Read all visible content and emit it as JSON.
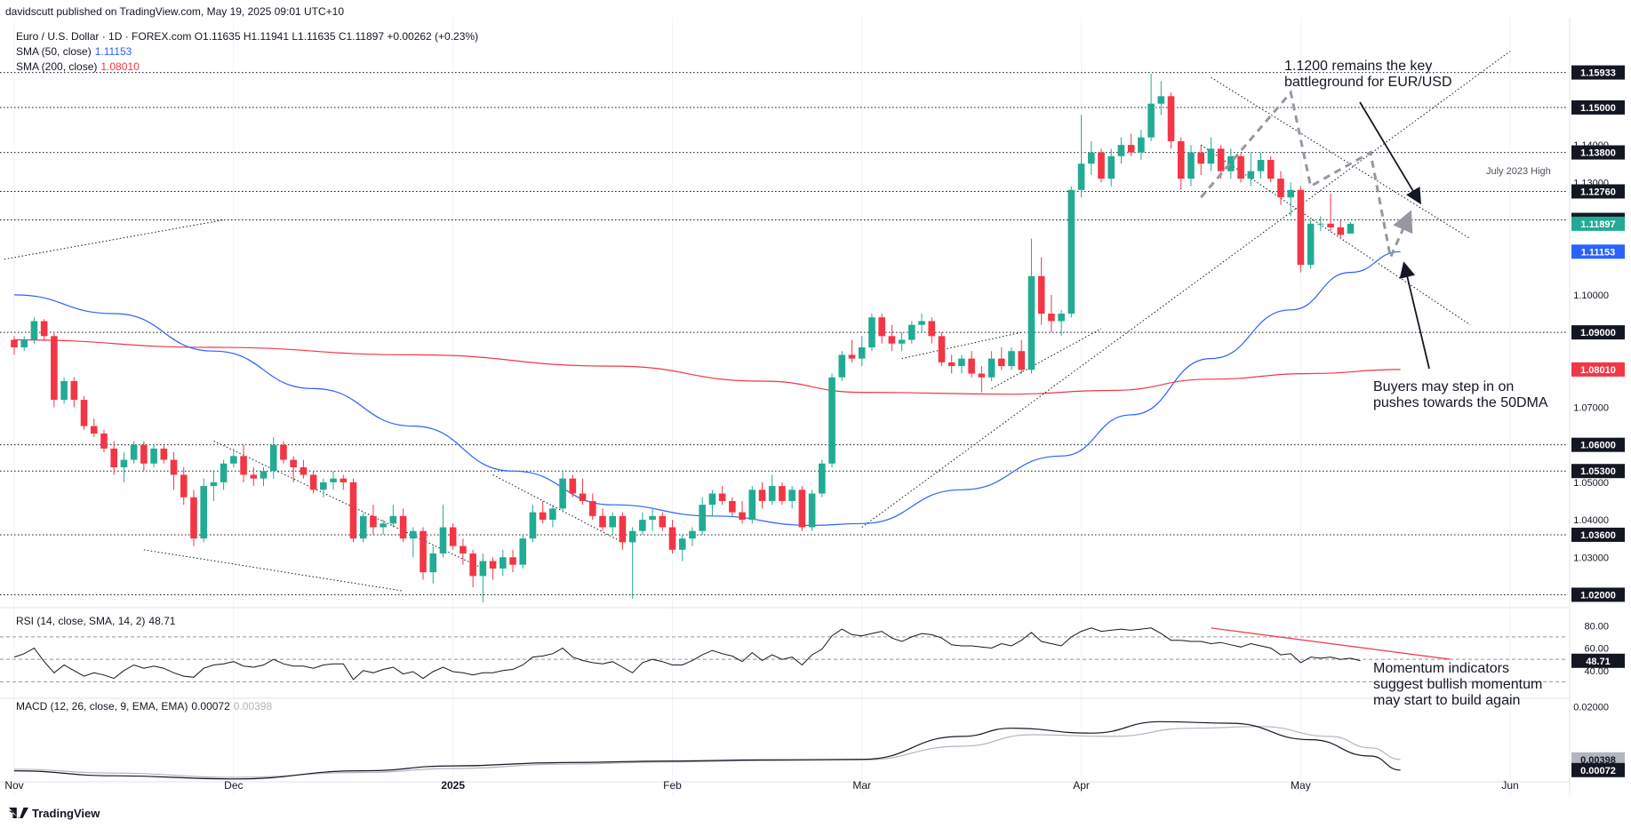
{
  "header": {
    "publisher": "davidscutt published on TradingView.com, May 19, 2025 09:01 UTC+10",
    "symbol_line": "Euro / U.S. Dollar · 1D · FOREX.com  O1.11635  H1.11941  L1.11635  C1.11897  +0.00262 (+0.23%)"
  },
  "legend": {
    "sma50_label": "SMA (50, close)",
    "sma50_value": "1.11153",
    "sma200_label": "SMA (200, close)",
    "sma200_value": "1.08010",
    "rsi_label": "RSI (14, close, SMA, 14, 2)",
    "rsi_value": "48.71",
    "macd_label": "MACD (12, 26, close, 9, EMA, EMA)",
    "macd_value": "0.00072",
    "signal_value": "0.00398"
  },
  "annotations": {
    "key_level_line1": "1.1200 remains the key",
    "key_level_line2": "battleground for EUR/USD",
    "buyers_line1": "Buyers may step in on",
    "buyers_line2": "pushes towards the 50DMA",
    "momentum_line1": "Momentum indicators",
    "momentum_line2": "suggest bullish momentum",
    "momentum_line3": "may start to build again",
    "july_high": "July 2023 High"
  },
  "branding": {
    "logo_text": "TradingView"
  },
  "colors": {
    "up": "#22ab94",
    "down": "#f23645",
    "sma50": "#2962ff",
    "sma200": "#f23645",
    "rsi": "#131722",
    "macd": "#131722",
    "signal": "#b2b5be",
    "rsi_trend": "#f23645"
  },
  "chart_data": {
    "type": "candlestick",
    "price_axis": {
      "range": [
        1.0175,
        1.168
      ],
      "ticks": [
        "1.15933",
        "1.15000",
        "1.14000",
        "1.13800",
        "1.13000",
        "1.12760",
        "1.12000",
        "1.11897",
        "1.11153",
        "1.10000",
        "1.09000",
        "1.08010",
        "1.07000",
        "1.06000",
        "1.05300",
        "1.05000",
        "1.04000",
        "1.03600",
        "1.03000",
        "1.02000"
      ],
      "tick_values": [
        1.15933,
        1.15,
        1.14,
        1.138,
        1.13,
        1.1276,
        1.12,
        1.11897,
        1.11153,
        1.1,
        1.09,
        1.0801,
        1.07,
        1.06,
        1.053,
        1.05,
        1.04,
        1.036,
        1.03,
        1.02
      ]
    },
    "horizontal_levels": [
      1.15933,
      1.15,
      1.138,
      1.1276,
      1.12,
      1.09,
      1.06,
      1.053,
      1.036,
      1.02
    ],
    "highlight_labels": [
      {
        "text": "1.15933",
        "value": 1.15933,
        "style": "dark"
      },
      {
        "text": "1.15000",
        "value": 1.15,
        "style": "dark"
      },
      {
        "text": "1.13800",
        "value": 1.138,
        "style": "dark"
      },
      {
        "text": "1.12760",
        "value": 1.1276,
        "style": "dark"
      },
      {
        "text": "1.12000",
        "value": 1.12,
        "style": "dark"
      },
      {
        "text": "1.11897",
        "value": 1.11897,
        "style": "up"
      },
      {
        "text": "1.11153",
        "value": 1.11153,
        "style": "sma50"
      },
      {
        "text": "1.09000",
        "value": 1.09,
        "style": "dark"
      },
      {
        "text": "1.08010",
        "value": 1.0801,
        "style": "sma200"
      },
      {
        "text": "1.06000",
        "value": 1.06,
        "style": "dark"
      },
      {
        "text": "1.05300",
        "value": 1.053,
        "style": "dark"
      },
      {
        "text": "1.03600",
        "value": 1.036,
        "style": "dark"
      },
      {
        "text": "1.02000",
        "value": 1.02,
        "style": "dark"
      }
    ],
    "time_axis": [
      "Nov",
      "Dec",
      "2025",
      "Feb",
      "Mar",
      "Apr",
      "May",
      "Jun"
    ],
    "time_axis_index": [
      0,
      22,
      44,
      66,
      85,
      107,
      129,
      150
    ],
    "candles_ohlc": [
      [
        1.088,
        1.089,
        1.084,
        1.086
      ],
      [
        1.086,
        1.089,
        1.085,
        1.088
      ],
      [
        1.088,
        1.094,
        1.087,
        1.093
      ],
      [
        1.093,
        1.0935,
        1.088,
        1.089
      ],
      [
        1.089,
        1.09,
        1.07,
        1.072
      ],
      [
        1.072,
        1.078,
        1.071,
        1.077
      ],
      [
        1.077,
        1.078,
        1.07,
        1.072
      ],
      [
        1.072,
        1.073,
        1.064,
        1.065
      ],
      [
        1.065,
        1.067,
        1.062,
        1.063
      ],
      [
        1.063,
        1.064,
        1.058,
        1.059
      ],
      [
        1.059,
        1.061,
        1.052,
        1.054
      ],
      [
        1.054,
        1.058,
        1.05,
        1.056
      ],
      [
        1.056,
        1.061,
        1.055,
        1.06
      ],
      [
        1.06,
        1.061,
        1.053,
        1.055
      ],
      [
        1.055,
        1.06,
        1.054,
        1.059
      ],
      [
        1.059,
        1.06,
        1.055,
        1.056
      ],
      [
        1.056,
        1.058,
        1.048,
        1.052
      ],
      [
        1.052,
        1.054,
        1.044,
        1.046
      ],
      [
        1.046,
        1.048,
        1.033,
        1.035
      ],
      [
        1.035,
        1.051,
        1.034,
        1.049
      ],
      [
        1.049,
        1.053,
        1.045,
        1.05
      ],
      [
        1.05,
        1.056,
        1.048,
        1.055
      ],
      [
        1.055,
        1.059,
        1.054,
        1.057
      ],
      [
        1.057,
        1.06,
        1.05,
        1.052
      ],
      [
        1.052,
        1.054,
        1.049,
        1.051
      ],
      [
        1.051,
        1.054,
        1.049,
        1.053
      ],
      [
        1.053,
        1.062,
        1.051,
        1.06
      ],
      [
        1.06,
        1.061,
        1.055,
        1.056
      ],
      [
        1.056,
        1.057,
        1.05,
        1.054
      ],
      [
        1.054,
        1.056,
        1.051,
        1.052
      ],
      [
        1.052,
        1.053,
        1.047,
        1.048
      ],
      [
        1.048,
        1.051,
        1.046,
        1.05
      ],
      [
        1.05,
        1.053,
        1.048,
        1.051
      ],
      [
        1.051,
        1.052,
        1.048,
        1.05
      ],
      [
        1.05,
        1.051,
        1.034,
        1.035
      ],
      [
        1.035,
        1.042,
        1.034,
        1.041
      ],
      [
        1.041,
        1.044,
        1.036,
        1.038
      ],
      [
        1.038,
        1.04,
        1.036,
        1.039
      ],
      [
        1.039,
        1.044,
        1.038,
        1.041
      ],
      [
        1.041,
        1.043,
        1.034,
        1.035
      ],
      [
        1.035,
        1.038,
        1.03,
        1.037
      ],
      [
        1.037,
        1.038,
        1.024,
        1.026
      ],
      [
        1.026,
        1.033,
        1.023,
        1.031
      ],
      [
        1.031,
        1.044,
        1.03,
        1.038
      ],
      [
        1.038,
        1.039,
        1.032,
        1.033
      ],
      [
        1.033,
        1.035,
        1.028,
        1.031
      ],
      [
        1.031,
        1.032,
        1.022,
        1.025
      ],
      [
        1.025,
        1.031,
        1.018,
        1.029
      ],
      [
        1.029,
        1.03,
        1.024,
        1.027
      ],
      [
        1.027,
        1.032,
        1.025,
        1.03
      ],
      [
        1.03,
        1.032,
        1.026,
        1.028
      ],
      [
        1.028,
        1.036,
        1.027,
        1.035
      ],
      [
        1.035,
        1.044,
        1.034,
        1.042
      ],
      [
        1.042,
        1.045,
        1.039,
        1.04
      ],
      [
        1.04,
        1.044,
        1.038,
        1.043
      ],
      [
        1.043,
        1.053,
        1.042,
        1.051
      ],
      [
        1.051,
        1.052,
        1.046,
        1.047
      ],
      [
        1.047,
        1.051,
        1.044,
        1.045
      ],
      [
        1.045,
        1.047,
        1.04,
        1.041
      ],
      [
        1.041,
        1.043,
        1.037,
        1.038
      ],
      [
        1.038,
        1.042,
        1.036,
        1.041
      ],
      [
        1.041,
        1.042,
        1.032,
        1.034
      ],
      [
        1.034,
        1.038,
        1.019,
        1.037
      ],
      [
        1.037,
        1.042,
        1.036,
        1.04
      ],
      [
        1.04,
        1.043,
        1.037,
        1.041
      ],
      [
        1.041,
        1.042,
        1.037,
        1.038
      ],
      [
        1.038,
        1.04,
        1.031,
        1.032
      ],
      [
        1.032,
        1.036,
        1.029,
        1.035
      ],
      [
        1.035,
        1.038,
        1.033,
        1.037
      ],
      [
        1.037,
        1.046,
        1.036,
        1.044
      ],
      [
        1.044,
        1.048,
        1.041,
        1.047
      ],
      [
        1.047,
        1.049,
        1.044,
        1.045
      ],
      [
        1.045,
        1.046,
        1.041,
        1.042
      ],
      [
        1.042,
        1.045,
        1.039,
        1.04
      ],
      [
        1.04,
        1.049,
        1.039,
        1.048
      ],
      [
        1.048,
        1.05,
        1.043,
        1.045
      ],
      [
        1.045,
        1.052,
        1.044,
        1.049
      ],
      [
        1.049,
        1.05,
        1.044,
        1.045
      ],
      [
        1.045,
        1.049,
        1.043,
        1.048
      ],
      [
        1.048,
        1.049,
        1.037,
        1.038
      ],
      [
        1.038,
        1.048,
        1.037,
        1.047
      ],
      [
        1.047,
        1.056,
        1.046,
        1.055
      ],
      [
        1.055,
        1.079,
        1.054,
        1.078
      ],
      [
        1.078,
        1.085,
        1.077,
        1.084
      ],
      [
        1.084,
        1.088,
        1.082,
        1.083
      ],
      [
        1.083,
        1.089,
        1.081,
        1.086
      ],
      [
        1.086,
        1.095,
        1.085,
        1.094
      ],
      [
        1.094,
        1.095,
        1.087,
        1.089
      ],
      [
        1.089,
        1.092,
        1.085,
        1.087
      ],
      [
        1.087,
        1.09,
        1.085,
        1.088
      ],
      [
        1.088,
        1.093,
        1.087,
        1.092
      ],
      [
        1.092,
        1.095,
        1.09,
        1.093
      ],
      [
        1.093,
        1.094,
        1.087,
        1.089
      ],
      [
        1.089,
        1.09,
        1.081,
        1.082
      ],
      [
        1.082,
        1.084,
        1.079,
        1.081
      ],
      [
        1.081,
        1.084,
        1.079,
        1.083
      ],
      [
        1.083,
        1.085,
        1.078,
        1.079
      ],
      [
        1.079,
        1.081,
        1.074,
        1.078
      ],
      [
        1.078,
        1.085,
        1.077,
        1.083
      ],
      [
        1.083,
        1.086,
        1.08,
        1.081
      ],
      [
        1.081,
        1.086,
        1.08,
        1.085
      ],
      [
        1.085,
        1.088,
        1.079,
        1.08
      ],
      [
        1.08,
        1.115,
        1.079,
        1.105
      ],
      [
        1.105,
        1.11,
        1.092,
        1.095
      ],
      [
        1.095,
        1.1,
        1.09,
        1.093
      ],
      [
        1.093,
        1.096,
        1.089,
        1.095
      ],
      [
        1.095,
        1.129,
        1.094,
        1.128
      ],
      [
        1.128,
        1.148,
        1.126,
        1.135
      ],
      [
        1.135,
        1.141,
        1.132,
        1.138
      ],
      [
        1.138,
        1.139,
        1.13,
        1.131
      ],
      [
        1.131,
        1.139,
        1.129,
        1.137
      ],
      [
        1.137,
        1.142,
        1.135,
        1.14
      ],
      [
        1.14,
        1.143,
        1.137,
        1.138
      ],
      [
        1.138,
        1.144,
        1.136,
        1.142
      ],
      [
        1.142,
        1.159,
        1.141,
        1.151
      ],
      [
        1.151,
        1.157,
        1.148,
        1.153
      ],
      [
        1.153,
        1.154,
        1.139,
        1.141
      ],
      [
        1.141,
        1.142,
        1.128,
        1.131
      ],
      [
        1.131,
        1.14,
        1.129,
        1.138
      ],
      [
        1.138,
        1.14,
        1.132,
        1.135
      ],
      [
        1.135,
        1.142,
        1.133,
        1.139
      ],
      [
        1.139,
        1.14,
        1.131,
        1.133
      ],
      [
        1.133,
        1.139,
        1.131,
        1.137
      ],
      [
        1.137,
        1.138,
        1.13,
        1.131
      ],
      [
        1.131,
        1.138,
        1.129,
        1.133
      ],
      [
        1.133,
        1.138,
        1.131,
        1.136
      ],
      [
        1.136,
        1.137,
        1.13,
        1.131
      ],
      [
        1.131,
        1.133,
        1.124,
        1.126
      ],
      [
        1.126,
        1.13,
        1.121,
        1.128
      ],
      [
        1.128,
        1.129,
        1.106,
        1.108
      ],
      [
        1.108,
        1.12,
        1.107,
        1.119
      ],
      [
        1.119,
        1.121,
        1.117,
        1.119
      ],
      [
        1.119,
        1.127,
        1.117,
        1.118
      ],
      [
        1.118,
        1.12,
        1.115,
        1.116
      ],
      [
        1.11635,
        1.11941,
        1.11635,
        1.11897
      ]
    ],
    "sma50_knots": [
      [
        0,
        1.1
      ],
      [
        10,
        1.095
      ],
      [
        20,
        1.085
      ],
      [
        30,
        1.075
      ],
      [
        40,
        1.065
      ],
      [
        50,
        1.053
      ],
      [
        60,
        1.044
      ],
      [
        70,
        1.041
      ],
      [
        80,
        1.0385
      ],
      [
        85,
        1.039
      ],
      [
        95,
        1.048
      ],
      [
        105,
        1.057
      ],
      [
        112,
        1.068
      ],
      [
        120,
        1.083
      ],
      [
        128,
        1.096
      ],
      [
        134,
        1.106
      ],
      [
        139,
        1.11153
      ]
    ],
    "sma200_knots": [
      [
        0,
        1.088
      ],
      [
        20,
        1.086
      ],
      [
        40,
        1.084
      ],
      [
        60,
        1.081
      ],
      [
        75,
        1.077
      ],
      [
        85,
        1.074
      ],
      [
        100,
        1.0735
      ],
      [
        110,
        1.0745
      ],
      [
        120,
        1.0775
      ],
      [
        130,
        1.079
      ],
      [
        139,
        1.0801
      ]
    ],
    "rsi": {
      "value": 48.71,
      "range": [
        20,
        85
      ],
      "levels": [
        70,
        50,
        30
      ],
      "ticks": [
        80,
        60,
        40
      ],
      "tick_labels": [
        "80.00",
        "60.00",
        "40.00"
      ],
      "values": [
        52,
        55,
        60,
        48,
        38,
        45,
        40,
        35,
        38,
        36,
        33,
        40,
        45,
        42,
        44,
        42,
        38,
        35,
        34,
        42,
        45,
        46,
        48,
        44,
        43,
        45,
        50,
        46,
        44,
        44,
        42,
        45,
        46,
        46,
        32,
        40,
        38,
        41,
        43,
        37,
        39,
        33,
        39,
        43,
        39,
        38,
        36,
        38,
        38,
        40,
        41,
        45,
        52,
        53,
        55,
        60,
        52,
        49,
        47,
        46,
        48,
        43,
        38,
        47,
        50,
        48,
        45,
        45,
        49,
        54,
        58,
        55,
        53,
        48,
        56,
        49,
        54,
        50,
        52,
        45,
        54,
        59,
        71,
        77,
        72,
        71,
        73,
        75,
        69,
        66,
        70,
        73,
        72,
        69,
        63,
        62,
        62,
        61,
        60,
        64,
        62,
        67,
        74,
        66,
        64,
        62,
        70,
        75,
        78,
        75,
        76,
        77,
        76,
        77,
        78,
        73,
        67,
        67,
        66,
        66,
        64,
        65,
        63,
        61,
        64,
        62,
        60,
        54,
        55,
        47,
        52,
        51,
        52,
        50,
        51,
        48.71
      ]
    },
    "macd": {
      "value": 0.00072,
      "signal": 0.00398,
      "range": [
        -0.0015,
        0.021
      ],
      "ticks": [
        0.02
      ],
      "tick_labels": [
        "0.02000"
      ],
      "macd_knots": [
        [
          0,
          0.0005
        ],
        [
          10,
          -0.001
        ],
        [
          22,
          -0.002
        ],
        [
          35,
          0.0005
        ],
        [
          44,
          0.002
        ],
        [
          55,
          0.003
        ],
        [
          66,
          0.0035
        ],
        [
          75,
          0.0038
        ],
        [
          85,
          0.004
        ],
        [
          95,
          0.011
        ],
        [
          100,
          0.0135
        ],
        [
          108,
          0.012
        ],
        [
          115,
          0.0155
        ],
        [
          122,
          0.015
        ],
        [
          130,
          0.01
        ],
        [
          136,
          0.005
        ],
        [
          139,
          0.00072
        ]
      ],
      "signal_knots": [
        [
          0,
          0.001
        ],
        [
          10,
          -0.0002
        ],
        [
          22,
          -0.0015
        ],
        [
          35,
          0.0
        ],
        [
          44,
          0.0012
        ],
        [
          55,
          0.0025
        ],
        [
          66,
          0.0032
        ],
        [
          75,
          0.0036
        ],
        [
          85,
          0.0038
        ],
        [
          95,
          0.008
        ],
        [
          102,
          0.0115
        ],
        [
          110,
          0.011
        ],
        [
          118,
          0.0135
        ],
        [
          125,
          0.014
        ],
        [
          132,
          0.011
        ],
        [
          136,
          0.0075
        ],
        [
          139,
          0.00398
        ]
      ]
    }
  }
}
